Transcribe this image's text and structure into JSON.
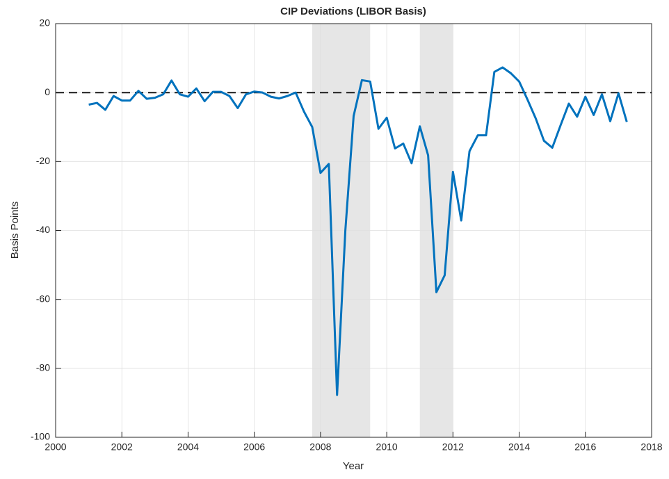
{
  "chart_data": {
    "type": "line",
    "title": "CIP Deviations (LIBOR Basis)",
    "x_label": "Year",
    "y_label": "Basis Points",
    "x": [
      2001,
      2001.25,
      2001.5,
      2001.75,
      2002,
      2002.25,
      2002.5,
      2002.75,
      2003,
      2003.25,
      2003.5,
      2003.75,
      2004,
      2004.25,
      2004.5,
      2004.75,
      2005,
      2005.25,
      2005.5,
      2005.75,
      2006,
      2006.25,
      2006.5,
      2006.75,
      2007,
      2007.25,
      2007.5,
      2007.75,
      2008,
      2008.25,
      2008.5,
      2008.75,
      2009,
      2009.25,
      2009.5,
      2009.75,
      2010,
      2010.25,
      2010.5,
      2010.75,
      2011,
      2011.25,
      2011.5,
      2011.75,
      2012,
      2012.25,
      2012.5,
      2012.75,
      2013,
      2013.25,
      2013.5,
      2013.75,
      2014,
      2014.25,
      2014.5,
      2014.75,
      2015,
      2015.25,
      2015.5,
      2015.75,
      2016,
      2016.25,
      2016.5,
      2016.75,
      2017,
      2017.25
    ],
    "values": [
      -3.5,
      -3,
      -5,
      -1,
      -2.3,
      -2.3,
      0.5,
      -1.8,
      -1.5,
      -0.5,
      3.5,
      -0.5,
      -1.2,
      1.2,
      -2.5,
      0.2,
      0.2,
      -1,
      -4.5,
      -0.5,
      0.3,
      0,
      -1.2,
      -1.7,
      -1,
      0,
      -5.5,
      -10,
      -23.3,
      -20.7,
      -87.7,
      -40,
      -6.8,
      3.6,
      3.2,
      -10.5,
      -7.3,
      -16.2,
      -14.8,
      -20.5,
      -9.8,
      -18.2,
      -57.9,
      -53,
      -23,
      -37.1,
      -17,
      -12.4,
      -12.4,
      6,
      7.3,
      5.6,
      3.2,
      -2,
      -7.5,
      -14,
      -16,
      -9.5,
      -3.2,
      -7,
      -1.2,
      -6.5,
      -0.5,
      -8.3,
      -0.2,
      -8.5
    ],
    "color": "#0072bd",
    "hline": 0,
    "shaded_regions": [
      [
        2007.75,
        2009.5
      ],
      [
        2011,
        2012
      ]
    ],
    "shade_color": "#e6e6e6",
    "xlim": [
      2000,
      2018
    ],
    "xticks": [
      2000,
      2002,
      2004,
      2006,
      2008,
      2010,
      2012,
      2014,
      2016,
      2018
    ],
    "ylim": [
      -100,
      20
    ],
    "yticks": [
      -100,
      -80,
      -60,
      -40,
      -20,
      0,
      20
    ],
    "grid": true
  }
}
